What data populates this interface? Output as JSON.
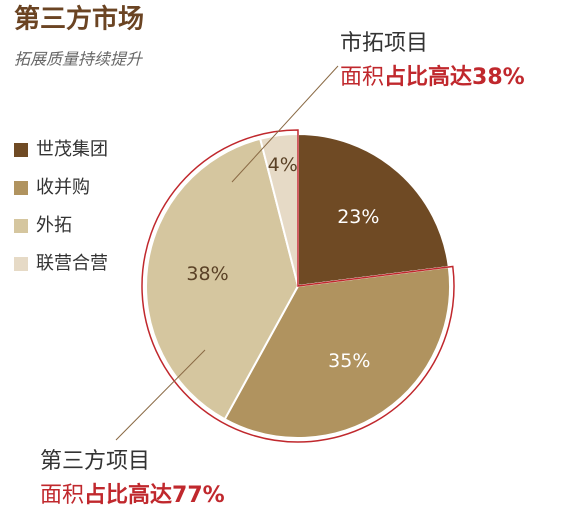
{
  "chart_data": {
    "type": "pie",
    "title": "第三方市场",
    "subtitle": "拓展质量持续提升",
    "categories": [
      "世茂集团",
      "收并购",
      "外拓",
      "联营合营"
    ],
    "values": [
      23,
      35,
      38,
      4
    ],
    "value_labels": [
      "23%",
      "35%",
      "38%",
      "4%"
    ],
    "colors": [
      "#6f4a24",
      "#b0935f",
      "#d5c69f",
      "#e6dac6"
    ],
    "annotations": [
      {
        "title": "市拓项目",
        "label": "面积",
        "highlight": "占比高达38%"
      },
      {
        "title": "第三方项目",
        "label": "面积",
        "highlight": "占比高达77%"
      }
    ]
  }
}
